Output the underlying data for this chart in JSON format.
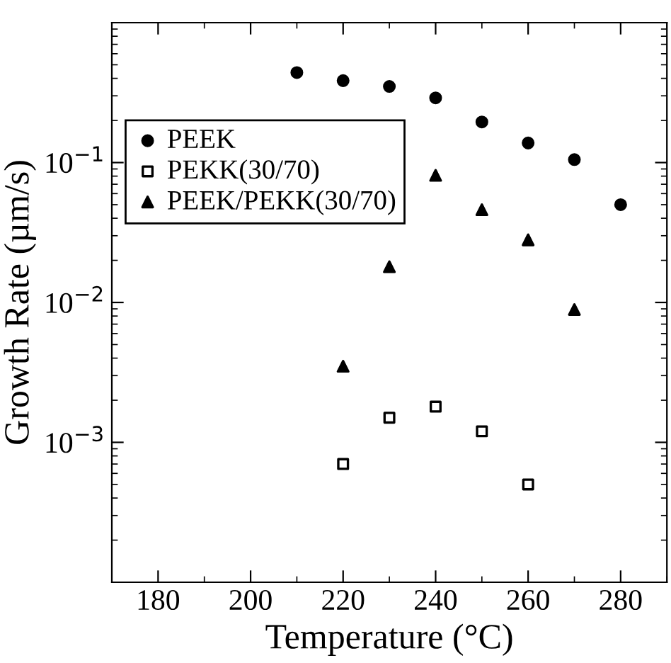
{
  "chart_data": {
    "type": "scatter",
    "xlabel": "Temperature (°C)",
    "ylabel": "Growth Rate (µm/s)",
    "log": "y",
    "legend": "top left",
    "grid": false,
    "xlim": [
      170,
      290
    ],
    "xticks": [
      180,
      200,
      220,
      240,
      260,
      280
    ],
    "ylim": [
      0.0001,
      1
    ],
    "yticks": [
      {
        "value": 0.1,
        "label": "10$^{−1}$"
      },
      {
        "value": 0.01,
        "label": "10$^{−2}$"
      },
      {
        "value": 0.001,
        "label": "10$^{−3}$"
      }
    ],
    "series": [
      {
        "name": "PEEK",
        "color": "#000000",
        "marker": "circle",
        "x": [
          210,
          220,
          230,
          240,
          250,
          260,
          270,
          280
        ],
        "values": [
          0.44,
          0.385,
          0.35,
          0.29,
          0.195,
          0.138,
          0.105,
          0.05
        ]
      },
      {
        "name": "PEKK(30/70)",
        "color": "#000000",
        "marker": "square",
        "x": [
          220,
          230,
          240,
          250,
          260
        ],
        "values": [
          0.0007,
          0.0015,
          0.0018,
          0.0012,
          0.0005
        ]
      },
      {
        "name": "PEEK/PEKK(30/70)",
        "color": "#000000",
        "marker": "triangle",
        "x": [
          220,
          230,
          240,
          250,
          260,
          270
        ],
        "values": [
          0.0035,
          0.018,
          0.081,
          0.046,
          0.028,
          0.0089
        ]
      }
    ]
  }
}
